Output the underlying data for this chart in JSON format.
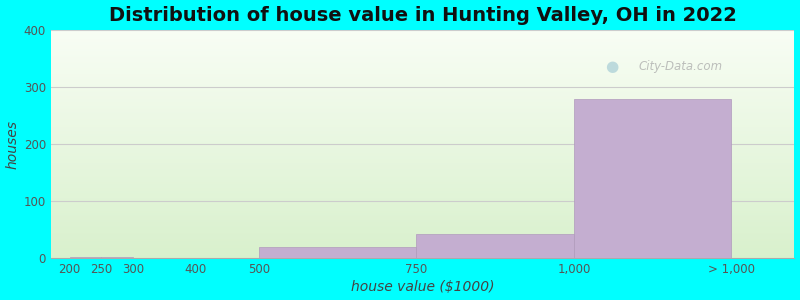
{
  "title": "Distribution of house value in Hunting Valley, OH in 2022",
  "xlabel": "house value ($1000)",
  "ylabel": "houses",
  "background_outer": "#00FFFF",
  "bar_color": "#c4aed0",
  "grid_color": "#e8e8e8",
  "tick_positions": [
    0,
    50,
    100,
    200,
    300,
    550,
    800,
    1050
  ],
  "tick_labels": [
    "200",
    "250",
    "300",
    "400",
    "500",
    "750",
    "1,000",
    "> 1,000"
  ],
  "bar_lefts": [
    0,
    50,
    100,
    200,
    300,
    550,
    800
  ],
  "bar_widths": [
    50,
    50,
    100,
    100,
    250,
    250,
    250
  ],
  "values": [
    3,
    2,
    1,
    1,
    20,
    42,
    280
  ],
  "xlim": [
    -30,
    1150
  ],
  "ylim": [
    0,
    400
  ],
  "yticks": [
    0,
    100,
    200,
    300,
    400
  ],
  "title_fontsize": 14,
  "axis_label_fontsize": 10,
  "tick_fontsize": 8.5,
  "watermark": "City-Data.com"
}
